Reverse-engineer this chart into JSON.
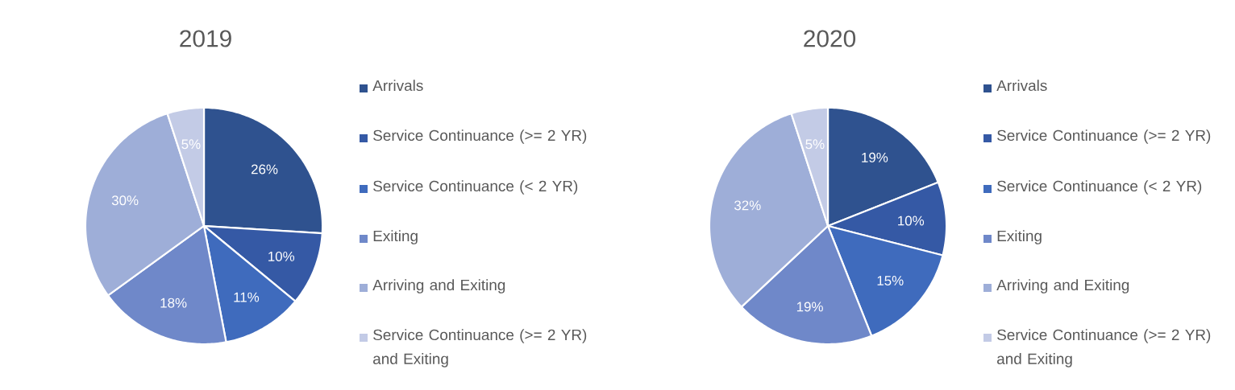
{
  "chart_data": [
    {
      "type": "pie",
      "title": "2019",
      "categories": [
        "Arrivals",
        "Service Continuance (>= 2 YR)",
        "Service Continuance (< 2 YR)",
        "Exiting",
        "Arriving and Exiting",
        "Service Continuance (>= 2 YR) and Exiting"
      ],
      "values": [
        26,
        10,
        11,
        18,
        30,
        5
      ],
      "value_labels": [
        "26%",
        "10%",
        "11%",
        "18%",
        "30%",
        "5%"
      ],
      "colors": [
        "#2f528f",
        "#3559a5",
        "#3f6bbd",
        "#6f88c9",
        "#9eaed8",
        "#c3cbe6"
      ],
      "legend": "right"
    },
    {
      "type": "pie",
      "title": "2020",
      "categories": [
        "Arrivals",
        "Service Continuance (>= 2 YR)",
        "Service Continuance (< 2 YR)",
        "Exiting",
        "Arriving and Exiting",
        "Service Continuance (>= 2 YR) and Exiting"
      ],
      "values": [
        19,
        10,
        15,
        19,
        32,
        5
      ],
      "value_labels": [
        "19%",
        "10%",
        "15%",
        "19%",
        "32%",
        "5%"
      ],
      "colors": [
        "#2f528f",
        "#3559a5",
        "#3f6bbd",
        "#6f88c9",
        "#9eaed8",
        "#c3cbe6"
      ],
      "legend": "right"
    }
  ]
}
